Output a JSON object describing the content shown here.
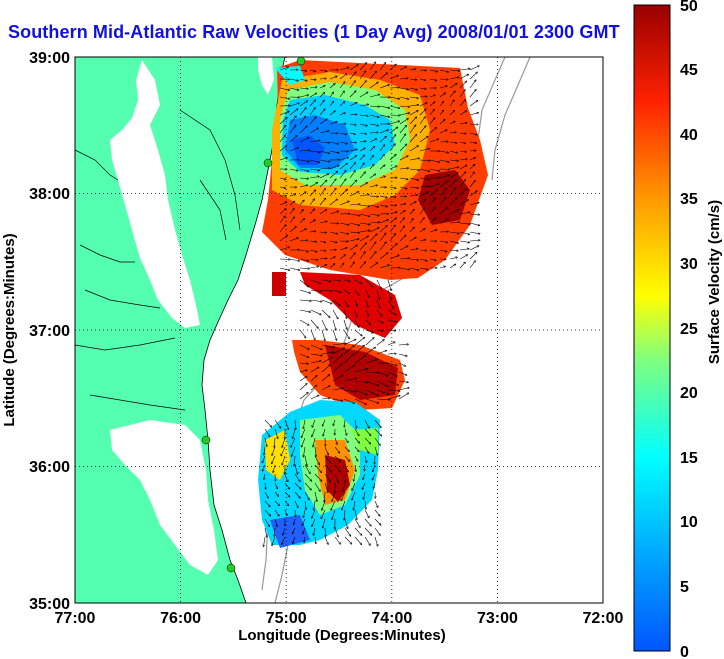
{
  "title": "Southern Mid-Atlantic Raw Velocities (1 Day Avg) 2008/01/01 2300 GMT",
  "map": {
    "xlabel": "Longitude (Degrees:Minutes)",
    "ylabel": "Latitude (Degrees:Minutes)",
    "x_ticks": [
      "77:00",
      "76:00",
      "75:00",
      "74:00",
      "73:00",
      "72:00"
    ],
    "y_ticks": [
      "39:00",
      "38:00",
      "37:00",
      "36:00",
      "35:00"
    ],
    "lon_range": [
      -77,
      -72
    ],
    "lat_range": [
      35,
      39
    ],
    "grid": "dotted"
  },
  "colorbar": {
    "label": "Surface Velocity (cm/s)",
    "ticks": [
      "50",
      "45",
      "40",
      "35",
      "30",
      "25",
      "20",
      "15",
      "10",
      "5",
      "0"
    ],
    "min": 0,
    "max": 50,
    "colormap": "jet"
  },
  "colors": {
    "land": "#55ffb0",
    "title": "#1010e0",
    "station": "#22cc22"
  }
}
